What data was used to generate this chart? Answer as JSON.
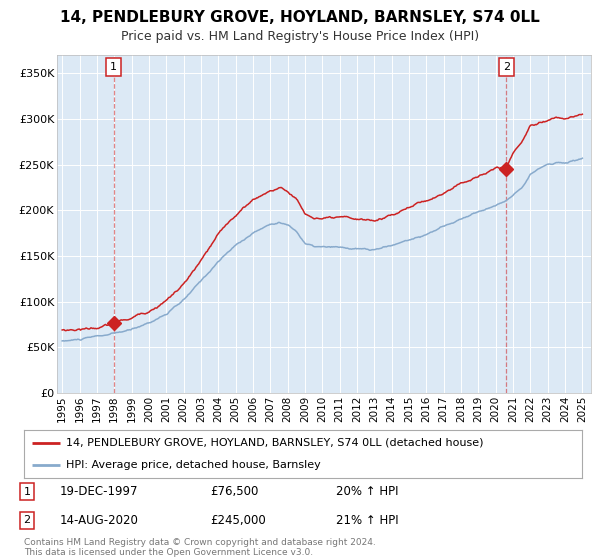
{
  "title": "14, PENDLEBURY GROVE, HOYLAND, BARNSLEY, S74 0LL",
  "subtitle": "Price paid vs. HM Land Registry's House Price Index (HPI)",
  "background_color": "#ffffff",
  "plot_bg_color": "#dce9f5",
  "red_color": "#cc2222",
  "blue_color": "#88aacc",
  "sale1_year": 1997.97,
  "sale1_price": 76500,
  "sale2_year": 2020.62,
  "sale2_price": 245000,
  "ylim": [
    0,
    370000
  ],
  "xlim": [
    1994.7,
    2025.5
  ],
  "yticks": [
    0,
    50000,
    100000,
    150000,
    200000,
    250000,
    300000,
    350000
  ],
  "ytick_labels": [
    "£0",
    "£50K",
    "£100K",
    "£150K",
    "£200K",
    "£250K",
    "£300K",
    "£350K"
  ],
  "xtick_years": [
    1995,
    1996,
    1997,
    1998,
    1999,
    2000,
    2001,
    2002,
    2003,
    2004,
    2005,
    2006,
    2007,
    2008,
    2009,
    2010,
    2011,
    2012,
    2013,
    2014,
    2015,
    2016,
    2017,
    2018,
    2019,
    2020,
    2021,
    2022,
    2023,
    2024,
    2025
  ],
  "legend_red": "14, PENDLEBURY GROVE, HOYLAND, BARNSLEY, S74 0LL (detached house)",
  "legend_blue": "HPI: Average price, detached house, Barnsley",
  "annotation1_label": "1",
  "annotation1_date": "19-DEC-1997",
  "annotation1_price": "£76,500",
  "annotation1_hpi": "20% ↑ HPI",
  "annotation2_label": "2",
  "annotation2_date": "14-AUG-2020",
  "annotation2_price": "£245,000",
  "annotation2_hpi": "21% ↑ HPI",
  "footer_line1": "Contains HM Land Registry data © Crown copyright and database right 2024.",
  "footer_line2": "This data is licensed under the Open Government Licence v3.0."
}
